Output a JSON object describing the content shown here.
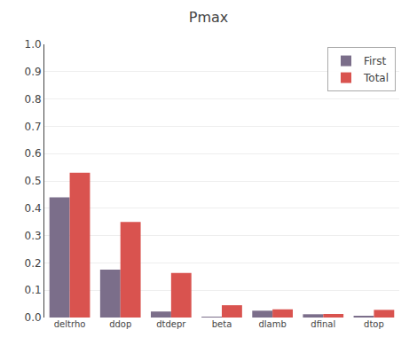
{
  "chart_data": {
    "type": "bar",
    "title": "Pmax",
    "categories": [
      "deltrho",
      "ddop",
      "dtdepr",
      "beta",
      "dlamb",
      "dfinal",
      "dtop"
    ],
    "series": [
      {
        "name": "First",
        "color": "#7b6e8a",
        "values": [
          0.44,
          0.175,
          0.022,
          0.002,
          0.025,
          0.012,
          0.005
        ]
      },
      {
        "name": "Total",
        "color": "#d9534f",
        "values": [
          0.53,
          0.35,
          0.163,
          0.045,
          0.03,
          0.013,
          0.028
        ]
      }
    ],
    "ylim": [
      0,
      1.0
    ],
    "yticks": [
      {
        "value": 0,
        "label": "0.0"
      },
      0.1,
      0.2,
      0.3,
      0.4,
      0.5,
      0.6,
      0.7,
      0.8,
      0.9,
      {
        "value": 1.0,
        "label": "1.0"
      }
    ],
    "grid": true,
    "legend": "upper right"
  }
}
